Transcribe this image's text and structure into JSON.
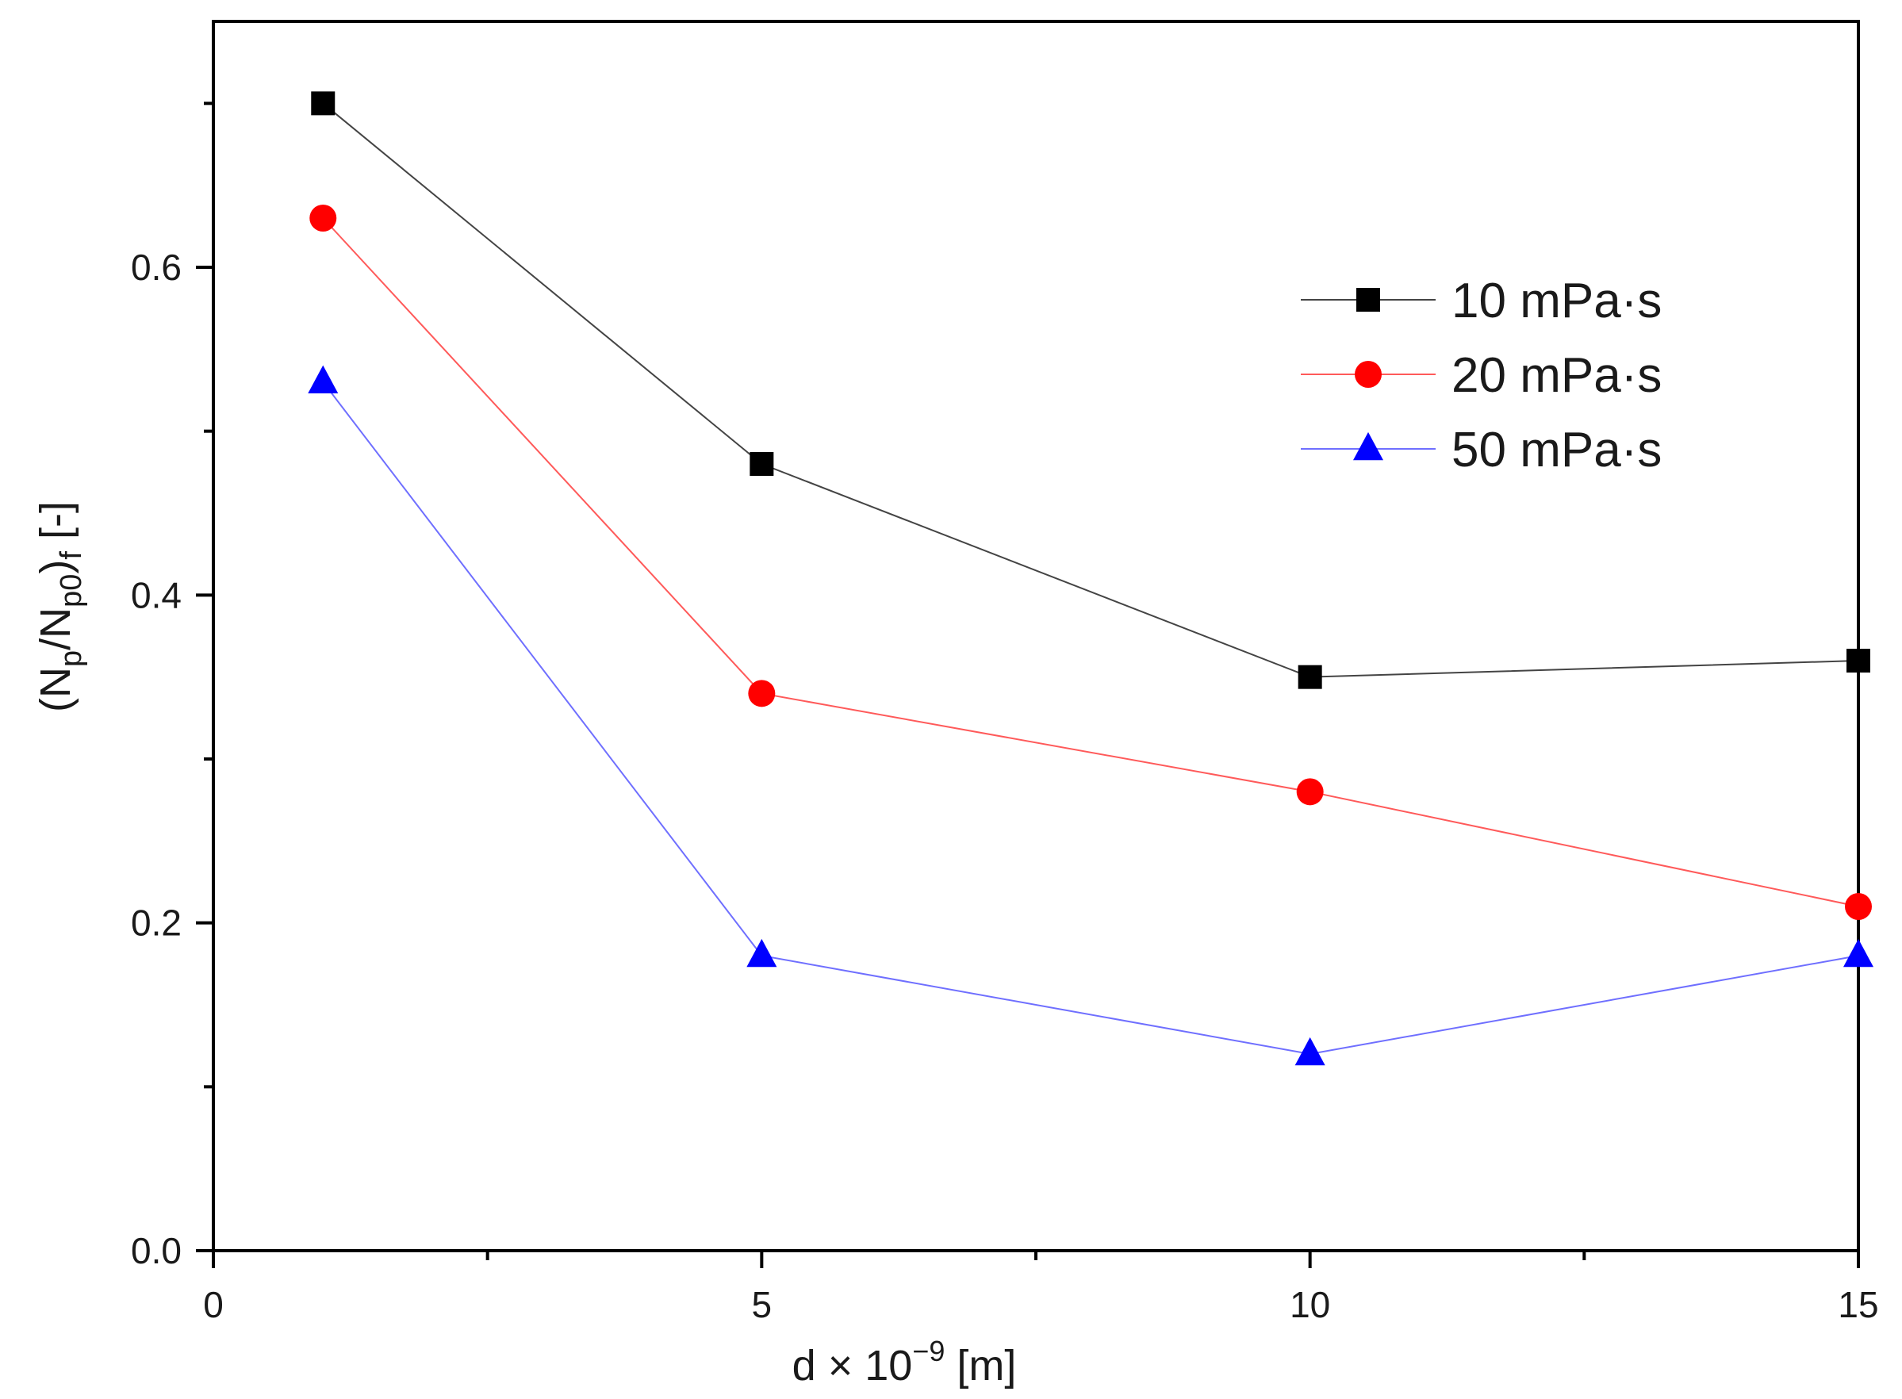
{
  "chart_data": {
    "type": "line",
    "title": "",
    "xlabel": "d × 10⁻⁹ [m]",
    "ylabel": "(Np/Np0)f [-]",
    "ylabel_parts": {
      "open": "(N",
      "sub1": "p",
      "mid": "/N",
      "sub2": "p0",
      "close": ")",
      "sub3": "f",
      "unit": " [-]"
    },
    "xlabel_parts": {
      "base": "d × 10",
      "exp": "−9",
      "unit": " [m]"
    },
    "xlim": [
      0,
      15
    ],
    "ylim": [
      0,
      0.75
    ],
    "xticks": [
      0,
      5,
      10,
      15
    ],
    "xtick_labels": [
      "0",
      "5",
      "10",
      "15"
    ],
    "xminor_ticks": [
      2.5,
      7.5,
      12.5
    ],
    "yticks": [
      0.0,
      0.2,
      0.4,
      0.6
    ],
    "ytick_labels": [
      "0.0",
      "0.2",
      "0.4",
      "0.6"
    ],
    "yminor_ticks": [
      0.1,
      0.3,
      0.5,
      0.7
    ],
    "grid": false,
    "legend_position": "top-right",
    "x": [
      1,
      5,
      10,
      15
    ],
    "series": [
      {
        "name": "10 mPa·s",
        "marker": "square",
        "color": "#000000",
        "line_color": "#444444",
        "values": [
          0.7,
          0.48,
          0.35,
          0.36
        ]
      },
      {
        "name": "20 mPa·s",
        "marker": "circle",
        "color": "#ff0000",
        "line_color": "#ff5a5a",
        "values": [
          0.63,
          0.34,
          0.28,
          0.21
        ]
      },
      {
        "name": "50 mPa·s",
        "marker": "triangle",
        "color": "#0000ff",
        "line_color": "#6f6fff",
        "values": [
          0.53,
          0.18,
          0.12,
          0.18
        ]
      }
    ]
  }
}
